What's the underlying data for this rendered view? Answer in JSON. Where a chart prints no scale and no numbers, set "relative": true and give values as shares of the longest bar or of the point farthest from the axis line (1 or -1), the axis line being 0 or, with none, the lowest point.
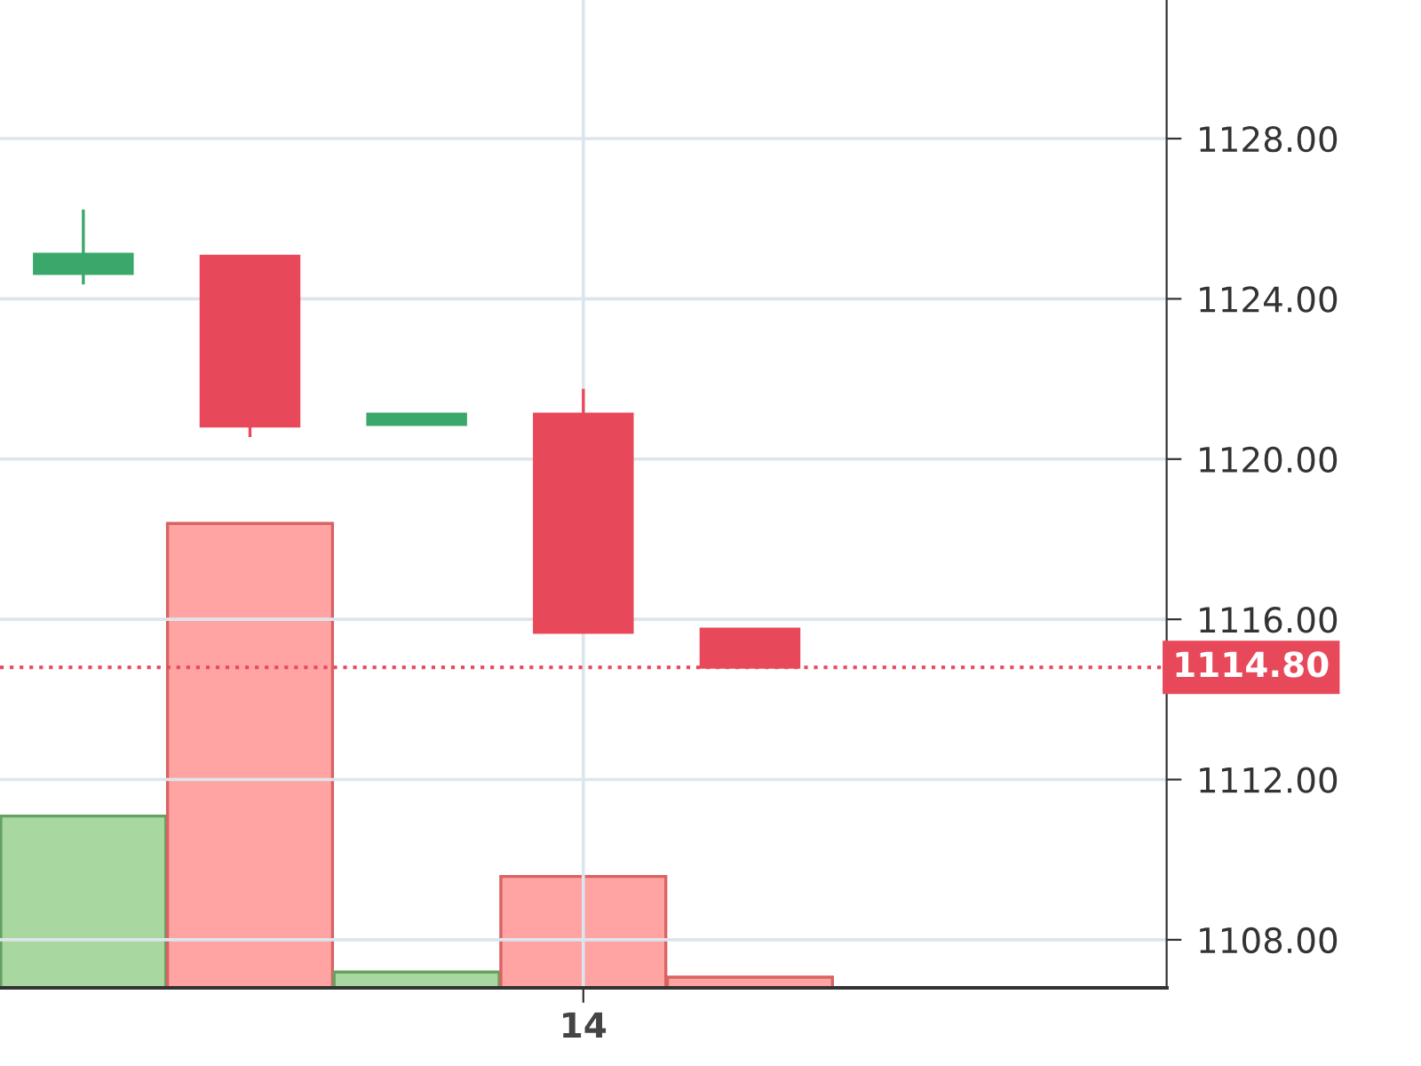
{
  "chart_data": [
    {
      "type": "candlestick",
      "categories": [
        null,
        null,
        null,
        "14",
        null,
        null,
        null
      ],
      "ohlc": [
        [
          1124.63,
          1126.23,
          1124.36,
          1125.12
        ],
        [
          1125.07,
          1125.07,
          1120.55,
          1120.82
        ],
        [
          1120.86,
          1121.13,
          1120.86,
          1121.13
        ],
        [
          1121.13,
          1121.75,
          1115.67,
          1115.67
        ],
        [
          1115.76,
          1115.76,
          1114.8,
          1114.8
        ],
        null,
        null
      ],
      "colors": [
        "#3aa86a",
        "#e8495a",
        "#3aa86a",
        "#e8495a",
        "#e8495a",
        null,
        null
      ],
      "ylim": [
        1106.8,
        1131.46
      ],
      "yticks": [
        {
          "value": 1108,
          "label": "1108.00"
        },
        {
          "value": 1112,
          "label": "1112.00"
        },
        {
          "value": 1116,
          "label": "1116.00"
        },
        {
          "value": 1120,
          "label": "1120.00"
        },
        {
          "value": 1124,
          "label": "1124.00"
        },
        {
          "value": 1128,
          "label": "1128.00"
        }
      ],
      "ref_lines": [
        {
          "axis": "y",
          "value": 1114.8,
          "label": "1114.80",
          "color": "#e8495a",
          "line_style": "dotted"
        }
      ],
      "grid": true
    },
    {
      "type": "bar",
      "relative": true,
      "categories": [
        null,
        null,
        null,
        null,
        null,
        null,
        null
      ],
      "values": [
        0.37,
        1,
        0.034,
        0.24,
        0.023,
        null,
        null
      ],
      "colors": [
        "#a8d8a0",
        "#ffa3a3",
        "#a8d8a0",
        "#ffa3a3",
        "#ffa3a3",
        null,
        null
      ]
    }
  ]
}
